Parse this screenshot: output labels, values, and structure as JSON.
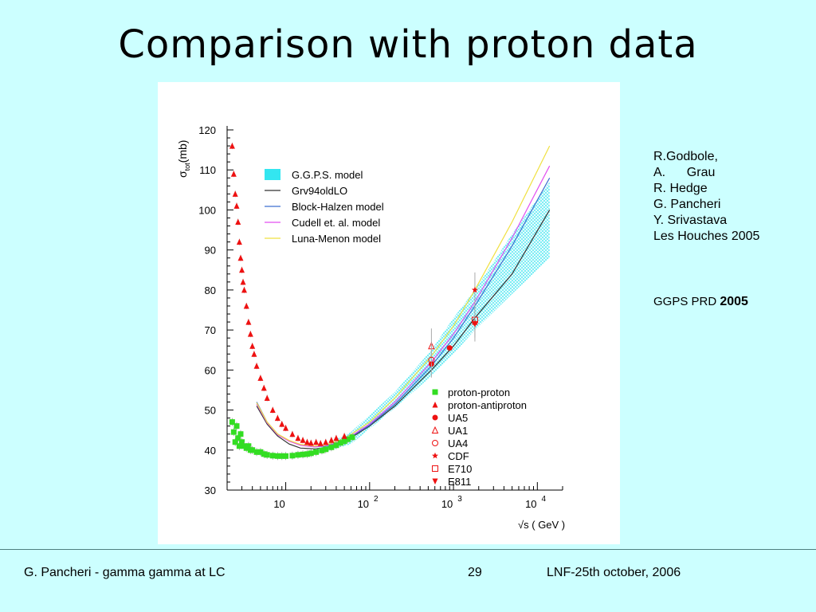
{
  "slide": {
    "title": "Comparison with proton data",
    "authors": [
      "R.Godbole,",
      "A.      Grau",
      "R. Hedge",
      "G. Pancheri",
      "Y. Srivastava",
      "Les Houches 2005"
    ],
    "ref_text": "GGPS PRD",
    "ref_year": "2005",
    "footer_left": "G. Pancheri - gamma gamma  at  LC",
    "footer_page": "29",
    "footer_right": "LNF-25th october, 2006"
  },
  "chart_data": {
    "type": "line",
    "title": "",
    "xlabel": "√s ( GeV )",
    "ylabel_main": "σ",
    "ylabel_sub": "tot",
    "ylabel_unit": "(mb)",
    "x_scale": "log",
    "xlim": [
      2,
      20000
    ],
    "ylim": [
      30,
      120
    ],
    "yticks": [
      30,
      40,
      50,
      60,
      70,
      80,
      90,
      100,
      110,
      120
    ],
    "xticks": [
      {
        "value": 10,
        "base": "10",
        "exp": ""
      },
      {
        "value": 100,
        "base": "10",
        "exp": "2"
      },
      {
        "value": 1000,
        "base": "10",
        "exp": "3"
      },
      {
        "value": 10000,
        "base": "10",
        "exp": "4"
      }
    ],
    "legend_models": [
      {
        "name": "G.G.P.S. model",
        "color": "#33e6f0",
        "kind": "band"
      },
      {
        "name": "Grv94oldLO",
        "color": "#333333",
        "kind": "line"
      },
      {
        "name": "Block-Halzen model",
        "color": "#3d6fd0",
        "kind": "line"
      },
      {
        "name": "Cudell et. al. model",
        "color": "#e24ff0",
        "kind": "line"
      },
      {
        "name": "Luna-Menon model",
        "color": "#f0e040",
        "kind": "line"
      }
    ],
    "legend_data": [
      {
        "name": "proton-proton",
        "color": "#33dd22",
        "marker": "square"
      },
      {
        "name": "proton-antiproton",
        "color": "#ee1111",
        "marker": "triangle"
      },
      {
        "name": "UA5",
        "color": "#ee1111",
        "marker": "circle"
      },
      {
        "name": "UA1",
        "color": "#ee1111",
        "marker": "triangle-open"
      },
      {
        "name": "UA4",
        "color": "#ee1111",
        "marker": "circle-open"
      },
      {
        "name": "CDF",
        "color": "#ee1111",
        "marker": "star"
      },
      {
        "name": "E710",
        "color": "#ee1111",
        "marker": "square-open"
      },
      {
        "name": "E811",
        "color": "#ee1111",
        "marker": "triangle-down"
      }
    ],
    "band": {
      "x": [
        20,
        60,
        200,
        546,
        1000,
        1800,
        5000,
        14000
      ],
      "lower": [
        38.5,
        41.5,
        50.5,
        58.5,
        64,
        70,
        79,
        88
      ],
      "upper": [
        39.5,
        44.5,
        54.5,
        65,
        73,
        80,
        94,
        107
      ]
    },
    "models": [
      {
        "name": "Grv94oldLO",
        "color": "#333333",
        "x": [
          4.5,
          6,
          8,
          11,
          15,
          22,
          30,
          50,
          100,
          200,
          546,
          1000,
          1800,
          5000,
          14000
        ],
        "y": [
          51,
          46.5,
          43.5,
          41.5,
          40.5,
          40.3,
          40.6,
          42,
          46,
          51,
          60,
          66,
          73,
          84,
          100
        ]
      },
      {
        "name": "Block-Halzen model",
        "color": "#3d6fd0",
        "x": [
          4.5,
          6,
          8,
          11,
          15,
          22,
          30,
          50,
          100,
          200,
          546,
          1000,
          1800,
          5000,
          14000
        ],
        "y": [
          52,
          47,
          44,
          42.3,
          41.3,
          40.8,
          41,
          42.3,
          46.2,
          51.5,
          61,
          68,
          76,
          91,
          108
        ]
      },
      {
        "name": "Cudell et. al. model",
        "color": "#e24ff0",
        "x": [
          4.5,
          6,
          8,
          11,
          15,
          22,
          30,
          50,
          100,
          200,
          546,
          1000,
          1800,
          5000,
          14000
        ],
        "y": [
          51.5,
          46.8,
          43.8,
          42.2,
          41.2,
          40.8,
          41.1,
          42.4,
          46.5,
          52,
          62,
          69,
          77,
          93,
          111
        ]
      },
      {
        "name": "Luna-Menon model",
        "color": "#f0e040",
        "x": [
          4.5,
          6,
          8,
          11,
          15,
          22,
          30,
          50,
          100,
          200,
          546,
          1000,
          1800,
          5000,
          14000
        ],
        "y": [
          51.8,
          47,
          44,
          42.4,
          41.4,
          41,
          41.3,
          42.8,
          47,
          53,
          63.5,
          71,
          80,
          97,
          116
        ]
      }
    ],
    "pbar_p": {
      "x": [
        2.3,
        2.4,
        2.5,
        2.6,
        2.7,
        2.8,
        2.9,
        3.0,
        3.1,
        3.2,
        3.4,
        3.6,
        3.8,
        4.0,
        4.2,
        4.5,
        5.0,
        5.5,
        6.0,
        7.0,
        8.0,
        9.0,
        10,
        12,
        14,
        16,
        18,
        20,
        23,
        26,
        30,
        35,
        40,
        50,
        546,
        900,
        1800
      ],
      "y": [
        116,
        109,
        104,
        101,
        97,
        92,
        88,
        85,
        82,
        80,
        76,
        72,
        69,
        66,
        64,
        61,
        58,
        55.5,
        53,
        50,
        48,
        46.5,
        45.5,
        44,
        43,
        42.5,
        42,
        41.8,
        42,
        41.7,
        42,
        42.5,
        43,
        43.5,
        61.5,
        65.5,
        72
      ]
    },
    "pp": {
      "x": [
        2.3,
        2.4,
        2.5,
        2.6,
        2.7,
        2.8,
        2.9,
        3.0,
        3.2,
        3.4,
        3.6,
        3.8,
        4.0,
        4.5,
        5.0,
        5.5,
        6.0,
        7.0,
        8.0,
        9.0,
        10,
        12,
        14,
        16,
        18,
        20,
        23,
        27,
        30,
        35,
        40,
        45,
        50,
        55,
        62
      ],
      "y": [
        47,
        44.5,
        42,
        46,
        43,
        41,
        44,
        42,
        41,
        40.5,
        41,
        40,
        40,
        39.5,
        39.5,
        39,
        38.8,
        38.6,
        38.5,
        38.5,
        38.5,
        38.6,
        38.8,
        38.9,
        39.0,
        39.2,
        39.5,
        39.9,
        40.2,
        40.7,
        41.2,
        41.8,
        42.2,
        42.7,
        43.2
      ]
    },
    "specials": [
      {
        "name": "UA1",
        "x": 546,
        "y": 66,
        "marker": "triangle-open"
      },
      {
        "name": "UA4",
        "x": 546,
        "y": 62.5,
        "marker": "circle-open"
      },
      {
        "name": "CDF",
        "x": 1800,
        "y": 80,
        "marker": "star"
      },
      {
        "name": "E710",
        "x": 1800,
        "y": 72.5,
        "marker": "square-open"
      },
      {
        "name": "E811",
        "x": 1800,
        "y": 71.5,
        "marker": "triangle-down"
      }
    ]
  }
}
